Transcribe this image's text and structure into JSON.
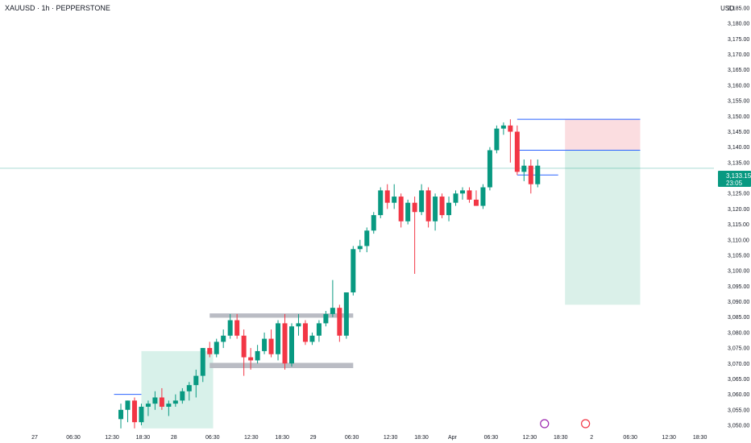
{
  "header": {
    "title": "XAUUSD · 1h · PEPPERSTONE",
    "currency": "USD"
  },
  "current_price": {
    "value": "3,133.15",
    "countdown": "23:05",
    "level": 3133.15
  },
  "colors": {
    "up": "#089981",
    "down": "#f23645",
    "tag": "#089981",
    "zone": "#b2b5be",
    "demand": "#d8f1ea",
    "stop": "#fbdde0",
    "target": "#daf0e9",
    "entry_line": "#2962ff"
  },
  "chart_data": {
    "type": "candlestick",
    "symbol": "XAUUSD",
    "timeframe": "1h",
    "y_ticks": [
      "3,185.00",
      "3,180.00",
      "3,175.00",
      "3,170.00",
      "3,165.00",
      "3,160.00",
      "3,155.00",
      "3,150.00",
      "3,145.00",
      "3,140.00",
      "3,135.00",
      "3,130.00",
      "3,125.00",
      "3,120.00",
      "3,115.00",
      "3,110.00",
      "3,105.00",
      "3,100.00",
      "3,095.00",
      "3,090.00",
      "3,085.00",
      "3,080.00",
      "3,075.00",
      "3,070.00",
      "3,065.00",
      "3,060.00",
      "3,055.00",
      "3,050.00"
    ],
    "y_tick_values": [
      3185,
      3180,
      3175,
      3170,
      3165,
      3160,
      3155,
      3150,
      3145,
      3140,
      3135,
      3130,
      3125,
      3120,
      3115,
      3110,
      3105,
      3100,
      3095,
      3090,
      3085,
      3080,
      3075,
      3070,
      3065,
      3060,
      3055,
      3050
    ],
    "ylim": [
      3047.5,
      3188
    ],
    "x_ticks": [
      "27",
      "06:30",
      "12:30",
      "18:30",
      "28",
      "06:30",
      "12:30",
      "18:30",
      "29",
      "06:30",
      "12:30",
      "18:30",
      "Apr",
      "06:30",
      "12:30",
      "18:30",
      "2",
      "06:30",
      "12:30",
      "18:30"
    ],
    "x_tick_index": [
      0,
      5,
      10,
      14,
      18,
      23,
      28,
      32,
      36,
      41,
      46,
      50,
      54,
      59,
      64,
      68,
      72,
      77,
      82,
      86
    ],
    "candles": [
      {
        "o": 3052,
        "h": 3057,
        "l": 3049,
        "c": 3055
      },
      {
        "o": 3055,
        "h": 3058,
        "l": 3051,
        "c": 3058
      },
      {
        "o": 3058,
        "h": 3059,
        "l": 3049,
        "c": 3051
      },
      {
        "o": 3051,
        "h": 3057,
        "l": 3050,
        "c": 3056
      },
      {
        "o": 3056,
        "h": 3058,
        "l": 3053,
        "c": 3057
      },
      {
        "o": 3057,
        "h": 3061,
        "l": 3055,
        "c": 3059
      },
      {
        "o": 3059,
        "h": 3062,
        "l": 3055,
        "c": 3056
      },
      {
        "o": 3056,
        "h": 3058,
        "l": 3053,
        "c": 3057
      },
      {
        "o": 3057,
        "h": 3060,
        "l": 3056,
        "c": 3058
      },
      {
        "o": 3058,
        "h": 3062,
        "l": 3057,
        "c": 3061
      },
      {
        "o": 3061,
        "h": 3064,
        "l": 3058,
        "c": 3063
      },
      {
        "o": 3063,
        "h": 3068,
        "l": 3059,
        "c": 3066
      },
      {
        "o": 3066,
        "h": 3075,
        "l": 3064,
        "c": 3075
      },
      {
        "o": 3075,
        "h": 3077,
        "l": 3072,
        "c": 3073
      },
      {
        "o": 3073,
        "h": 3078,
        "l": 3072,
        "c": 3077
      },
      {
        "o": 3077,
        "h": 3081,
        "l": 3075,
        "c": 3079
      },
      {
        "o": 3079,
        "h": 3086,
        "l": 3078,
        "c": 3084
      },
      {
        "o": 3084,
        "h": 3086,
        "l": 3078,
        "c": 3079
      },
      {
        "o": 3079,
        "h": 3081,
        "l": 3066,
        "c": 3072
      },
      {
        "o": 3072,
        "h": 3075,
        "l": 3068,
        "c": 3071
      },
      {
        "o": 3071,
        "h": 3076,
        "l": 3070,
        "c": 3074
      },
      {
        "o": 3074,
        "h": 3080,
        "l": 3073,
        "c": 3078
      },
      {
        "o": 3078,
        "h": 3081,
        "l": 3072,
        "c": 3073
      },
      {
        "o": 3073,
        "h": 3084,
        "l": 3071,
        "c": 3083
      },
      {
        "o": 3083,
        "h": 3086,
        "l": 3068,
        "c": 3070
      },
      {
        "o": 3070,
        "h": 3083,
        "l": 3069,
        "c": 3082
      },
      {
        "o": 3082,
        "h": 3086,
        "l": 3079,
        "c": 3083
      },
      {
        "o": 3083,
        "h": 3084,
        "l": 3076,
        "c": 3077
      },
      {
        "o": 3077,
        "h": 3080,
        "l": 3076,
        "c": 3079
      },
      {
        "o": 3079,
        "h": 3084,
        "l": 3077,
        "c": 3083
      },
      {
        "o": 3083,
        "h": 3087,
        "l": 3082,
        "c": 3086
      },
      {
        "o": 3086,
        "h": 3097,
        "l": 3085,
        "c": 3088
      },
      {
        "o": 3088,
        "h": 3089,
        "l": 3077,
        "c": 3079
      },
      {
        "o": 3079,
        "h": 3093,
        "l": 3078,
        "c": 3093
      },
      {
        "o": 3093,
        "h": 3108,
        "l": 3092,
        "c": 3107
      },
      {
        "o": 3107,
        "h": 3110,
        "l": 3106,
        "c": 3108
      },
      {
        "o": 3108,
        "h": 3114,
        "l": 3106,
        "c": 3113
      },
      {
        "o": 3113,
        "h": 3119,
        "l": 3112,
        "c": 3118
      },
      {
        "o": 3118,
        "h": 3127,
        "l": 3117,
        "c": 3126
      },
      {
        "o": 3126,
        "h": 3128,
        "l": 3120,
        "c": 3122
      },
      {
        "o": 3122,
        "h": 3128,
        "l": 3120,
        "c": 3124
      },
      {
        "o": 3124,
        "h": 3125,
        "l": 3114,
        "c": 3116
      },
      {
        "o": 3116,
        "h": 3123,
        "l": 3115,
        "c": 3122
      },
      {
        "o": 3122,
        "h": 3124,
        "l": 3099,
        "c": 3119
      },
      {
        "o": 3119,
        "h": 3128,
        "l": 3118,
        "c": 3126
      },
      {
        "o": 3126,
        "h": 3127,
        "l": 3114,
        "c": 3116
      },
      {
        "o": 3116,
        "h": 3125,
        "l": 3113,
        "c": 3124
      },
      {
        "o": 3124,
        "h": 3125,
        "l": 3117,
        "c": 3118
      },
      {
        "o": 3118,
        "h": 3124,
        "l": 3116,
        "c": 3122
      },
      {
        "o": 3122,
        "h": 3126,
        "l": 3121,
        "c": 3125
      },
      {
        "o": 3125,
        "h": 3127,
        "l": 3123,
        "c": 3126
      },
      {
        "o": 3126,
        "h": 3127,
        "l": 3122,
        "c": 3123
      },
      {
        "o": 3123,
        "h": 3126,
        "l": 3121,
        "c": 3121
      },
      {
        "o": 3121,
        "h": 3128,
        "l": 3120,
        "c": 3127
      },
      {
        "o": 3127,
        "h": 3140,
        "l": 3126,
        "c": 3139
      },
      {
        "o": 3139,
        "h": 3147,
        "l": 3138,
        "c": 3146
      },
      {
        "o": 3146,
        "h": 3148,
        "l": 3144,
        "c": 3147
      },
      {
        "o": 3147,
        "h": 3149,
        "l": 3135,
        "c": 3145
      },
      {
        "o": 3145,
        "h": 3147,
        "l": 3131,
        "c": 3132
      },
      {
        "o": 3132,
        "h": 3136,
        "l": 3129,
        "c": 3134
      },
      {
        "o": 3134,
        "h": 3136,
        "l": 3125,
        "c": 3128
      },
      {
        "o": 3128,
        "h": 3136,
        "l": 3127,
        "c": 3134
      }
    ],
    "candle_x_start": 150,
    "candle_spacing": 8.48,
    "zones": [
      {
        "name": "demand-zone",
        "x0_index": 3,
        "x1_index": 13.5,
        "y_top": 3074,
        "y_bottom": 3049
      },
      {
        "name": "resistance-zone",
        "x0_index": 13,
        "x1_index": 34,
        "y_top": 3086.2,
        "y_bottom": 3084.8
      },
      {
        "name": "support-zone",
        "x0_index": 13,
        "x1_index": 34,
        "y_top": 3070.2,
        "y_bottom": 3068.5
      }
    ],
    "position": {
      "x0_index": 65,
      "x1_index": 76,
      "entry": 3139,
      "stop": 3149,
      "target": 3089
    },
    "marker_lines": [
      {
        "price": 3149,
        "x0_index": 58,
        "x1_index": 76
      },
      {
        "price": 3139,
        "x0_index": 58,
        "x1_index": 76
      },
      {
        "price": 3131,
        "x0_index": 58,
        "x1_index": 64
      },
      {
        "price": 3060,
        "x0_index": -1,
        "x1_index": 3
      }
    ],
    "events": [
      {
        "name": "flash-icon",
        "index": 62,
        "color": "#9c27b0"
      },
      {
        "name": "us-flag-icon",
        "index": 68,
        "color": "#f23645"
      }
    ]
  }
}
